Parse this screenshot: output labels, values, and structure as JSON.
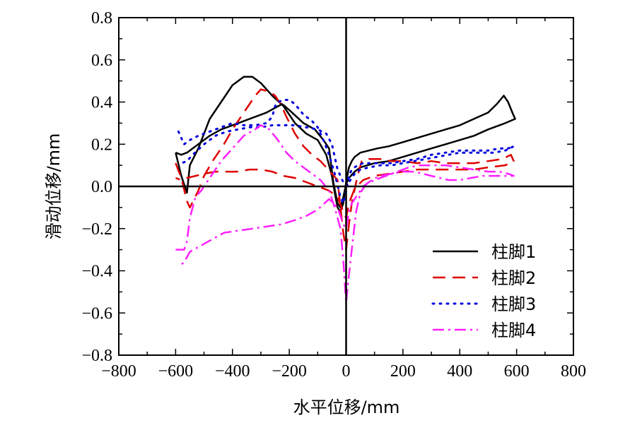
{
  "chart_data": {
    "type": "line",
    "title": "",
    "xlabel": "水平位移/mm",
    "ylabel": "滑动位移/mm",
    "xlim": [
      -800,
      800
    ],
    "ylim": [
      -0.8,
      0.8
    ],
    "grid": false,
    "legend_position": "bottom-right",
    "x_ticks": [
      -800,
      -600,
      -400,
      -200,
      0,
      200,
      400,
      600,
      800
    ],
    "x_tick_labels": [
      "−800",
      "−600",
      "−400",
      "−200",
      "0",
      "200",
      "400",
      "600",
      "800"
    ],
    "y_ticks": [
      -0.8,
      -0.6,
      -0.4,
      -0.2,
      0.0,
      0.2,
      0.4,
      0.6,
      0.8
    ],
    "y_tick_labels": [
      "−0.8",
      "−0.6",
      "−0.4",
      "−0.2",
      "0.0",
      "0.2",
      "0.4",
      "0.6",
      "0.8"
    ],
    "series": [
      {
        "name": "柱脚1",
        "color": "#000000",
        "dash": "solid",
        "points": [
          [
            -600,
            0.16
          ],
          [
            -580,
            0.05
          ],
          [
            -560,
            -0.03
          ],
          [
            -550,
            0.1
          ],
          [
            -520,
            0.18
          ],
          [
            -480,
            0.32
          ],
          [
            -440,
            0.4
          ],
          [
            -400,
            0.48
          ],
          [
            -360,
            0.52
          ],
          [
            -330,
            0.52
          ],
          [
            -300,
            0.49
          ],
          [
            -260,
            0.43
          ],
          [
            -220,
            0.38
          ],
          [
            -180,
            0.3
          ],
          [
            -140,
            0.25
          ],
          [
            -100,
            0.22
          ],
          [
            -70,
            0.15
          ],
          [
            -50,
            0.05
          ],
          [
            -40,
            -0.03
          ],
          [
            -30,
            -0.1
          ],
          [
            -20,
            -0.12
          ],
          [
            -10,
            -0.08
          ],
          [
            0,
            0.02
          ],
          [
            10,
            0.09
          ],
          [
            20,
            0.12
          ],
          [
            30,
            0.14
          ],
          [
            50,
            0.16
          ],
          [
            80,
            0.17
          ],
          [
            110,
            0.18
          ],
          [
            150,
            0.19
          ],
          [
            200,
            0.21
          ],
          [
            250,
            0.23
          ],
          [
            300,
            0.25
          ],
          [
            350,
            0.27
          ],
          [
            400,
            0.29
          ],
          [
            450,
            0.32
          ],
          [
            500,
            0.35
          ],
          [
            530,
            0.39
          ],
          [
            555,
            0.43
          ],
          [
            570,
            0.4
          ],
          [
            585,
            0.35
          ],
          [
            595,
            0.32
          ],
          [
            560,
            0.3
          ],
          [
            500,
            0.27
          ],
          [
            450,
            0.24
          ],
          [
            400,
            0.22
          ],
          [
            350,
            0.2
          ],
          [
            300,
            0.18
          ],
          [
            250,
            0.16
          ],
          [
            200,
            0.14
          ],
          [
            150,
            0.12
          ],
          [
            100,
            0.11
          ],
          [
            50,
            0.09
          ],
          [
            30,
            0.07
          ],
          [
            10,
            0.04
          ],
          [
            0,
            0.01
          ],
          [
            -10,
            -0.05
          ],
          [
            -20,
            -0.1
          ],
          [
            -30,
            -0.08
          ],
          [
            -45,
            0.02
          ],
          [
            -60,
            0.18
          ],
          [
            -80,
            0.22
          ],
          [
            -110,
            0.27
          ],
          [
            -150,
            0.3
          ],
          [
            -190,
            0.35
          ],
          [
            -215,
            0.38
          ],
          [
            -225,
            0.39
          ],
          [
            -240,
            0.38
          ],
          [
            -280,
            0.35
          ],
          [
            -320,
            0.33
          ],
          [
            -360,
            0.31
          ],
          [
            -400,
            0.29
          ],
          [
            -440,
            0.27
          ],
          [
            -480,
            0.24
          ],
          [
            -520,
            0.2
          ],
          [
            -560,
            0.16
          ],
          [
            -580,
            0.15
          ],
          [
            -600,
            0.16
          ]
        ]
      },
      {
        "name": "柱脚2",
        "color": "#e00000",
        "dash": "18 10",
        "points": [
          [
            -600,
            0.11
          ],
          [
            -580,
            0.04
          ],
          [
            -560,
            -0.07
          ],
          [
            -550,
            -0.1
          ],
          [
            -520,
            -0.02
          ],
          [
            -500,
            0.05
          ],
          [
            -470,
            0.12
          ],
          [
            -430,
            0.2
          ],
          [
            -400,
            0.27
          ],
          [
            -370,
            0.33
          ],
          [
            -340,
            0.39
          ],
          [
            -320,
            0.43
          ],
          [
            -300,
            0.46
          ],
          [
            -270,
            0.45
          ],
          [
            -250,
            0.43
          ],
          [
            -230,
            0.39
          ],
          [
            -210,
            0.33
          ],
          [
            -180,
            0.25
          ],
          [
            -150,
            0.19
          ],
          [
            -120,
            0.15
          ],
          [
            -90,
            0.12
          ],
          [
            -70,
            0.09
          ],
          [
            -50,
            0.06
          ],
          [
            -30,
            0.03
          ],
          [
            -20,
            -0.1
          ],
          [
            -10,
            -0.22
          ],
          [
            0,
            -0.3
          ],
          [
            10,
            -0.18
          ],
          [
            20,
            -0.08
          ],
          [
            40,
            0.05
          ],
          [
            55,
            0.12
          ],
          [
            80,
            0.13
          ],
          [
            120,
            0.13
          ],
          [
            160,
            0.12
          ],
          [
            200,
            0.12
          ],
          [
            250,
            0.11
          ],
          [
            300,
            0.12
          ],
          [
            350,
            0.11
          ],
          [
            400,
            0.11
          ],
          [
            450,
            0.11
          ],
          [
            500,
            0.12
          ],
          [
            550,
            0.13
          ],
          [
            580,
            0.15
          ],
          [
            590,
            0.12
          ],
          [
            560,
            0.1
          ],
          [
            500,
            0.09
          ],
          [
            450,
            0.08
          ],
          [
            400,
            0.08
          ],
          [
            350,
            0.08
          ],
          [
            300,
            0.08
          ],
          [
            250,
            0.08
          ],
          [
            200,
            0.07
          ],
          [
            150,
            0.06
          ],
          [
            100,
            0.05
          ],
          [
            60,
            0.03
          ],
          [
            30,
            -0.01
          ],
          [
            10,
            -0.08
          ],
          [
            0,
            -0.15
          ],
          [
            -10,
            -0.12
          ],
          [
            -30,
            -0.05
          ],
          [
            -60,
            -0.02
          ],
          [
            -100,
            0.0
          ],
          [
            -140,
            0.02
          ],
          [
            -180,
            0.04
          ],
          [
            -220,
            0.05
          ],
          [
            -260,
            0.07
          ],
          [
            -300,
            0.08
          ],
          [
            -340,
            0.08
          ],
          [
            -380,
            0.07
          ],
          [
            -420,
            0.07
          ],
          [
            -460,
            0.07
          ],
          [
            -500,
            0.06
          ],
          [
            -530,
            0.05
          ],
          [
            -560,
            0.04
          ],
          [
            -580,
            0.03
          ],
          [
            -600,
            0.04
          ]
        ]
      },
      {
        "name": "柱脚3",
        "color": "#0000e0",
        "dash": "2 8",
        "points": [
          [
            -590,
            0.26
          ],
          [
            -570,
            0.2
          ],
          [
            -550,
            0.22
          ],
          [
            -520,
            0.24
          ],
          [
            -480,
            0.26
          ],
          [
            -440,
            0.28
          ],
          [
            -400,
            0.3
          ],
          [
            -360,
            0.29
          ],
          [
            -320,
            0.29
          ],
          [
            -280,
            0.3
          ],
          [
            -260,
            0.33
          ],
          [
            -250,
            0.38
          ],
          [
            -240,
            0.4
          ],
          [
            -220,
            0.41
          ],
          [
            -200,
            0.41
          ],
          [
            -180,
            0.39
          ],
          [
            -150,
            0.34
          ],
          [
            -120,
            0.31
          ],
          [
            -100,
            0.28
          ],
          [
            -80,
            0.22
          ],
          [
            -60,
            0.15
          ],
          [
            -40,
            0.06
          ],
          [
            -20,
            -0.05
          ],
          [
            -10,
            -0.08
          ],
          [
            0,
            -0.02
          ],
          [
            10,
            0.05
          ],
          [
            20,
            0.08
          ],
          [
            40,
            0.1
          ],
          [
            60,
            0.11
          ],
          [
            90,
            0.11
          ],
          [
            120,
            0.11
          ],
          [
            160,
            0.11
          ],
          [
            200,
            0.12
          ],
          [
            250,
            0.13
          ],
          [
            300,
            0.15
          ],
          [
            350,
            0.16
          ],
          [
            400,
            0.17
          ],
          [
            450,
            0.17
          ],
          [
            500,
            0.17
          ],
          [
            540,
            0.18
          ],
          [
            570,
            0.18
          ],
          [
            590,
            0.19
          ],
          [
            560,
            0.17
          ],
          [
            520,
            0.16
          ],
          [
            480,
            0.16
          ],
          [
            440,
            0.16
          ],
          [
            400,
            0.16
          ],
          [
            360,
            0.15
          ],
          [
            320,
            0.14
          ],
          [
            280,
            0.13
          ],
          [
            240,
            0.12
          ],
          [
            200,
            0.11
          ],
          [
            160,
            0.1
          ],
          [
            120,
            0.1
          ],
          [
            80,
            0.09
          ],
          [
            50,
            0.08
          ],
          [
            30,
            0.06
          ],
          [
            10,
            0.02
          ],
          [
            0,
            0.0
          ],
          [
            -10,
            0.02
          ],
          [
            -30,
            0.08
          ],
          [
            -50,
            0.2
          ],
          [
            -70,
            0.25
          ],
          [
            -100,
            0.27
          ],
          [
            -140,
            0.28
          ],
          [
            -180,
            0.29
          ],
          [
            -220,
            0.29
          ],
          [
            -260,
            0.29
          ],
          [
            -300,
            0.28
          ],
          [
            -340,
            0.28
          ],
          [
            -380,
            0.27
          ],
          [
            -420,
            0.26
          ],
          [
            -460,
            0.24
          ],
          [
            -500,
            0.2
          ],
          [
            -540,
            0.15
          ],
          [
            -560,
            0.12
          ],
          [
            -580,
            0.11
          ],
          [
            -590,
            0.12
          ]
        ]
      },
      {
        "name": "柱脚4",
        "color": "#ff20ff",
        "dash": "16 6 3 6",
        "points": [
          [
            -600,
            -0.3
          ],
          [
            -570,
            -0.3
          ],
          [
            -560,
            -0.26
          ],
          [
            -550,
            -0.15
          ],
          [
            -530,
            -0.05
          ],
          [
            -510,
            -0.02
          ],
          [
            -490,
            0.02
          ],
          [
            -470,
            0.06
          ],
          [
            -440,
            0.12
          ],
          [
            -400,
            0.18
          ],
          [
            -360,
            0.24
          ],
          [
            -320,
            0.27
          ],
          [
            -300,
            0.29
          ],
          [
            -270,
            0.27
          ],
          [
            -240,
            0.22
          ],
          [
            -210,
            0.16
          ],
          [
            -180,
            0.12
          ],
          [
            -150,
            0.09
          ],
          [
            -120,
            0.06
          ],
          [
            -90,
            0.03
          ],
          [
            -60,
            -0.02
          ],
          [
            -40,
            -0.1
          ],
          [
            -20,
            -0.2
          ],
          [
            -10,
            -0.35
          ],
          [
            0,
            -0.55
          ],
          [
            10,
            -0.42
          ],
          [
            20,
            -0.3
          ],
          [
            35,
            -0.12
          ],
          [
            50,
            -0.03
          ],
          [
            70,
            0.01
          ],
          [
            100,
            0.03
          ],
          [
            140,
            0.05
          ],
          [
            180,
            0.07
          ],
          [
            220,
            0.09
          ],
          [
            260,
            0.1
          ],
          [
            300,
            0.1
          ],
          [
            350,
            0.1
          ],
          [
            400,
            0.09
          ],
          [
            450,
            0.08
          ],
          [
            500,
            0.07
          ],
          [
            540,
            0.07
          ],
          [
            570,
            0.06
          ],
          [
            590,
            0.05
          ],
          [
            560,
            0.05
          ],
          [
            520,
            0.05
          ],
          [
            480,
            0.05
          ],
          [
            440,
            0.04
          ],
          [
            400,
            0.03
          ],
          [
            360,
            0.03
          ],
          [
            330,
            0.04
          ],
          [
            300,
            0.05
          ],
          [
            270,
            0.06
          ],
          [
            240,
            0.07
          ],
          [
            200,
            0.07
          ],
          [
            160,
            0.06
          ],
          [
            120,
            0.05
          ],
          [
            90,
            0.03
          ],
          [
            60,
            0.0
          ],
          [
            40,
            -0.04
          ],
          [
            20,
            -0.08
          ],
          [
            10,
            -0.12
          ],
          [
            0,
            -0.2
          ],
          [
            -10,
            -0.18
          ],
          [
            -30,
            -0.1
          ],
          [
            -60,
            -0.06
          ],
          [
            -100,
            -0.11
          ],
          [
            -140,
            -0.14
          ],
          [
            -180,
            -0.16
          ],
          [
            -230,
            -0.18
          ],
          [
            -280,
            -0.19
          ],
          [
            -330,
            -0.2
          ],
          [
            -380,
            -0.21
          ],
          [
            -430,
            -0.22
          ],
          [
            -470,
            -0.25
          ],
          [
            -510,
            -0.28
          ],
          [
            -550,
            -0.31
          ],
          [
            -570,
            -0.36
          ],
          [
            -590,
            -0.38
          ]
        ]
      }
    ]
  }
}
